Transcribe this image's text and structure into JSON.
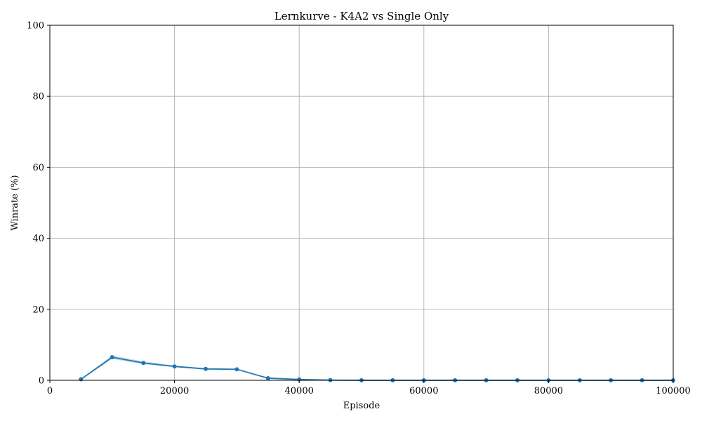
{
  "chart_data": {
    "type": "line",
    "title": "Lernkurve - K4A2 vs Single Only",
    "xlabel": "Episode",
    "ylabel": "Winrate (%)",
    "xlim": [
      0,
      100000
    ],
    "ylim": [
      0,
      100
    ],
    "xticks": [
      0,
      20000,
      40000,
      60000,
      80000,
      100000
    ],
    "yticks": [
      0,
      20,
      40,
      60,
      80,
      100
    ],
    "grid": true,
    "legend": "none",
    "series": [
      {
        "color": "#1f77b4",
        "band_color": "#1f77b4",
        "x": [
          5000,
          10000,
          15000,
          20000,
          25000,
          30000,
          35000,
          40000,
          45000,
          50000,
          55000,
          60000,
          65000,
          70000,
          75000,
          80000,
          85000,
          90000,
          95000,
          100000
        ],
        "y": [
          0.3,
          6.5,
          4.9,
          3.9,
          3.2,
          3.1,
          0.6,
          0.25,
          0.05,
          0.0,
          0.0,
          0.0,
          0.0,
          0.0,
          0.0,
          0.0,
          0.0,
          0.0,
          0.0,
          0.0
        ],
        "y_lower": [
          0.2,
          6.0,
          4.5,
          3.7,
          3.1,
          3.0,
          0.5,
          0.2,
          0.0,
          0.0,
          0.0,
          0.0,
          0.0,
          0.0,
          0.0,
          0.0,
          0.0,
          0.0,
          0.0,
          0.0
        ],
        "y_upper": [
          0.4,
          7.0,
          5.3,
          4.2,
          3.4,
          3.2,
          0.7,
          0.3,
          0.1,
          0.0,
          0.0,
          0.0,
          0.0,
          0.0,
          0.0,
          0.0,
          0.0,
          0.0,
          0.0,
          0.0
        ]
      }
    ]
  }
}
